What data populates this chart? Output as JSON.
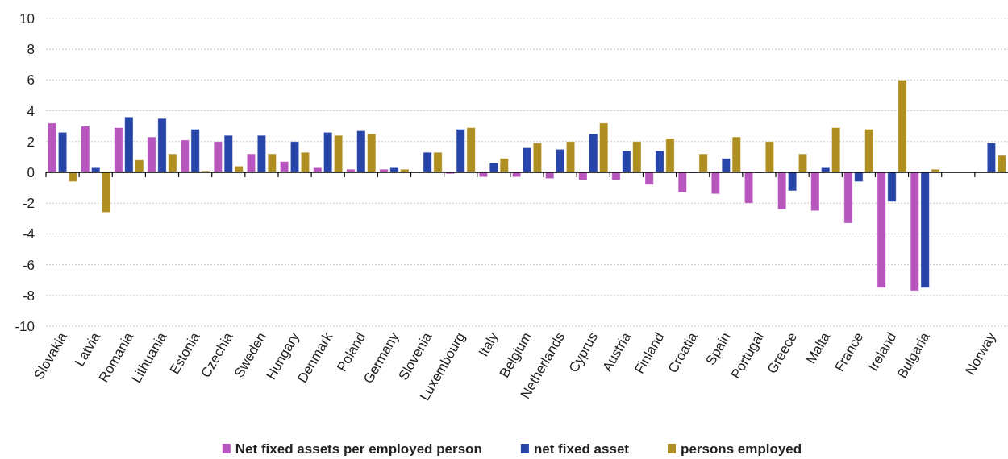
{
  "chart_data": {
    "type": "bar",
    "categories": [
      "Slovakia",
      "Latvia",
      "Romania",
      "Lithuania",
      "Estonia",
      "Czechia",
      "Sweden",
      "Hungary",
      "Denmark",
      "Poland",
      "Germany",
      "Slovenia",
      "Luxembourg",
      "Italy",
      "Belgium",
      "Netherlands",
      "Cyprus",
      "Austria",
      "Finland",
      "Croatia",
      "Spain",
      "Portugal",
      "Greece",
      "Malta",
      "France",
      "Ireland",
      "Bulgaria",
      null,
      "Norway"
    ],
    "series": [
      {
        "name": "Net fixed assets per employed person",
        "color": "#b756bc",
        "values": [
          3.2,
          3.0,
          2.9,
          2.3,
          2.1,
          2.0,
          1.2,
          0.7,
          0.3,
          0.2,
          0.2,
          0.0,
          -0.1,
          -0.3,
          -0.3,
          -0.4,
          -0.5,
          -0.5,
          -0.8,
          -1.3,
          -1.4,
          -2.0,
          -2.4,
          -2.5,
          -3.3,
          -7.5,
          -7.7,
          null,
          null
        ]
      },
      {
        "name": "net fixed asset",
        "color": "#2744a8",
        "values": [
          2.6,
          0.3,
          3.6,
          3.5,
          2.8,
          2.4,
          2.4,
          2.0,
          2.6,
          2.7,
          0.3,
          1.3,
          2.8,
          0.6,
          1.6,
          1.5,
          2.5,
          1.4,
          1.4,
          -0.05,
          0.9,
          -0.05,
          -1.2,
          0.3,
          -0.6,
          -1.9,
          -7.5,
          null,
          1.9
        ]
      },
      {
        "name": "persons employed",
        "color": "#b08f22",
        "values": [
          -0.6,
          -2.6,
          0.8,
          1.2,
          0.1,
          0.4,
          1.2,
          1.3,
          2.4,
          2.5,
          0.2,
          1.3,
          2.9,
          0.9,
          1.9,
          2.0,
          3.2,
          2.0,
          2.2,
          1.2,
          2.3,
          2.0,
          1.2,
          2.9,
          2.8,
          6.0,
          0.2,
          null,
          1.1
        ]
      }
    ],
    "ylim": [
      -10,
      10
    ],
    "yticks": [
      -10,
      -8,
      -6,
      -4,
      -2,
      0,
      2,
      4,
      6,
      8,
      10
    ],
    "grid": "y",
    "legend": "bottom"
  }
}
